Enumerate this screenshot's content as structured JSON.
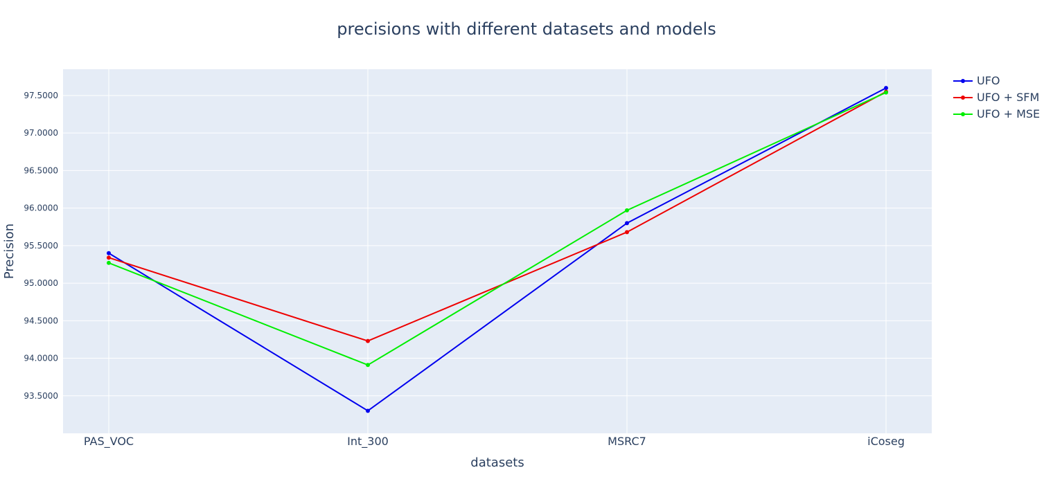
{
  "chart_data": {
    "type": "line",
    "title": "precisions with different datasets and models",
    "xlabel": "datasets",
    "ylabel": "Precision",
    "categories": [
      "PAS_VOC",
      "Int_300",
      "MSRC7",
      "iCoseg"
    ],
    "series": [
      {
        "name": "UFO",
        "color": "#0000ee",
        "values": [
          95.4,
          93.3,
          95.8,
          97.6
        ]
      },
      {
        "name": "UFO + SFM",
        "color": "#ee0000",
        "values": [
          95.34,
          94.23,
          95.68,
          97.55
        ]
      },
      {
        "name": "UFO + MSE",
        "color": "#00ee00",
        "values": [
          95.27,
          93.91,
          95.97,
          97.54
        ]
      }
    ],
    "yticks": [
      "93.5000",
      "94.0000",
      "94.5000",
      "95.0000",
      "95.5000",
      "96.0000",
      "96.5000",
      "97.0000",
      "97.5000"
    ],
    "ylim": [
      93.0,
      97.85
    ],
    "grid": true,
    "legend_position": "top-right",
    "plot_background": "#e5ecf6"
  }
}
